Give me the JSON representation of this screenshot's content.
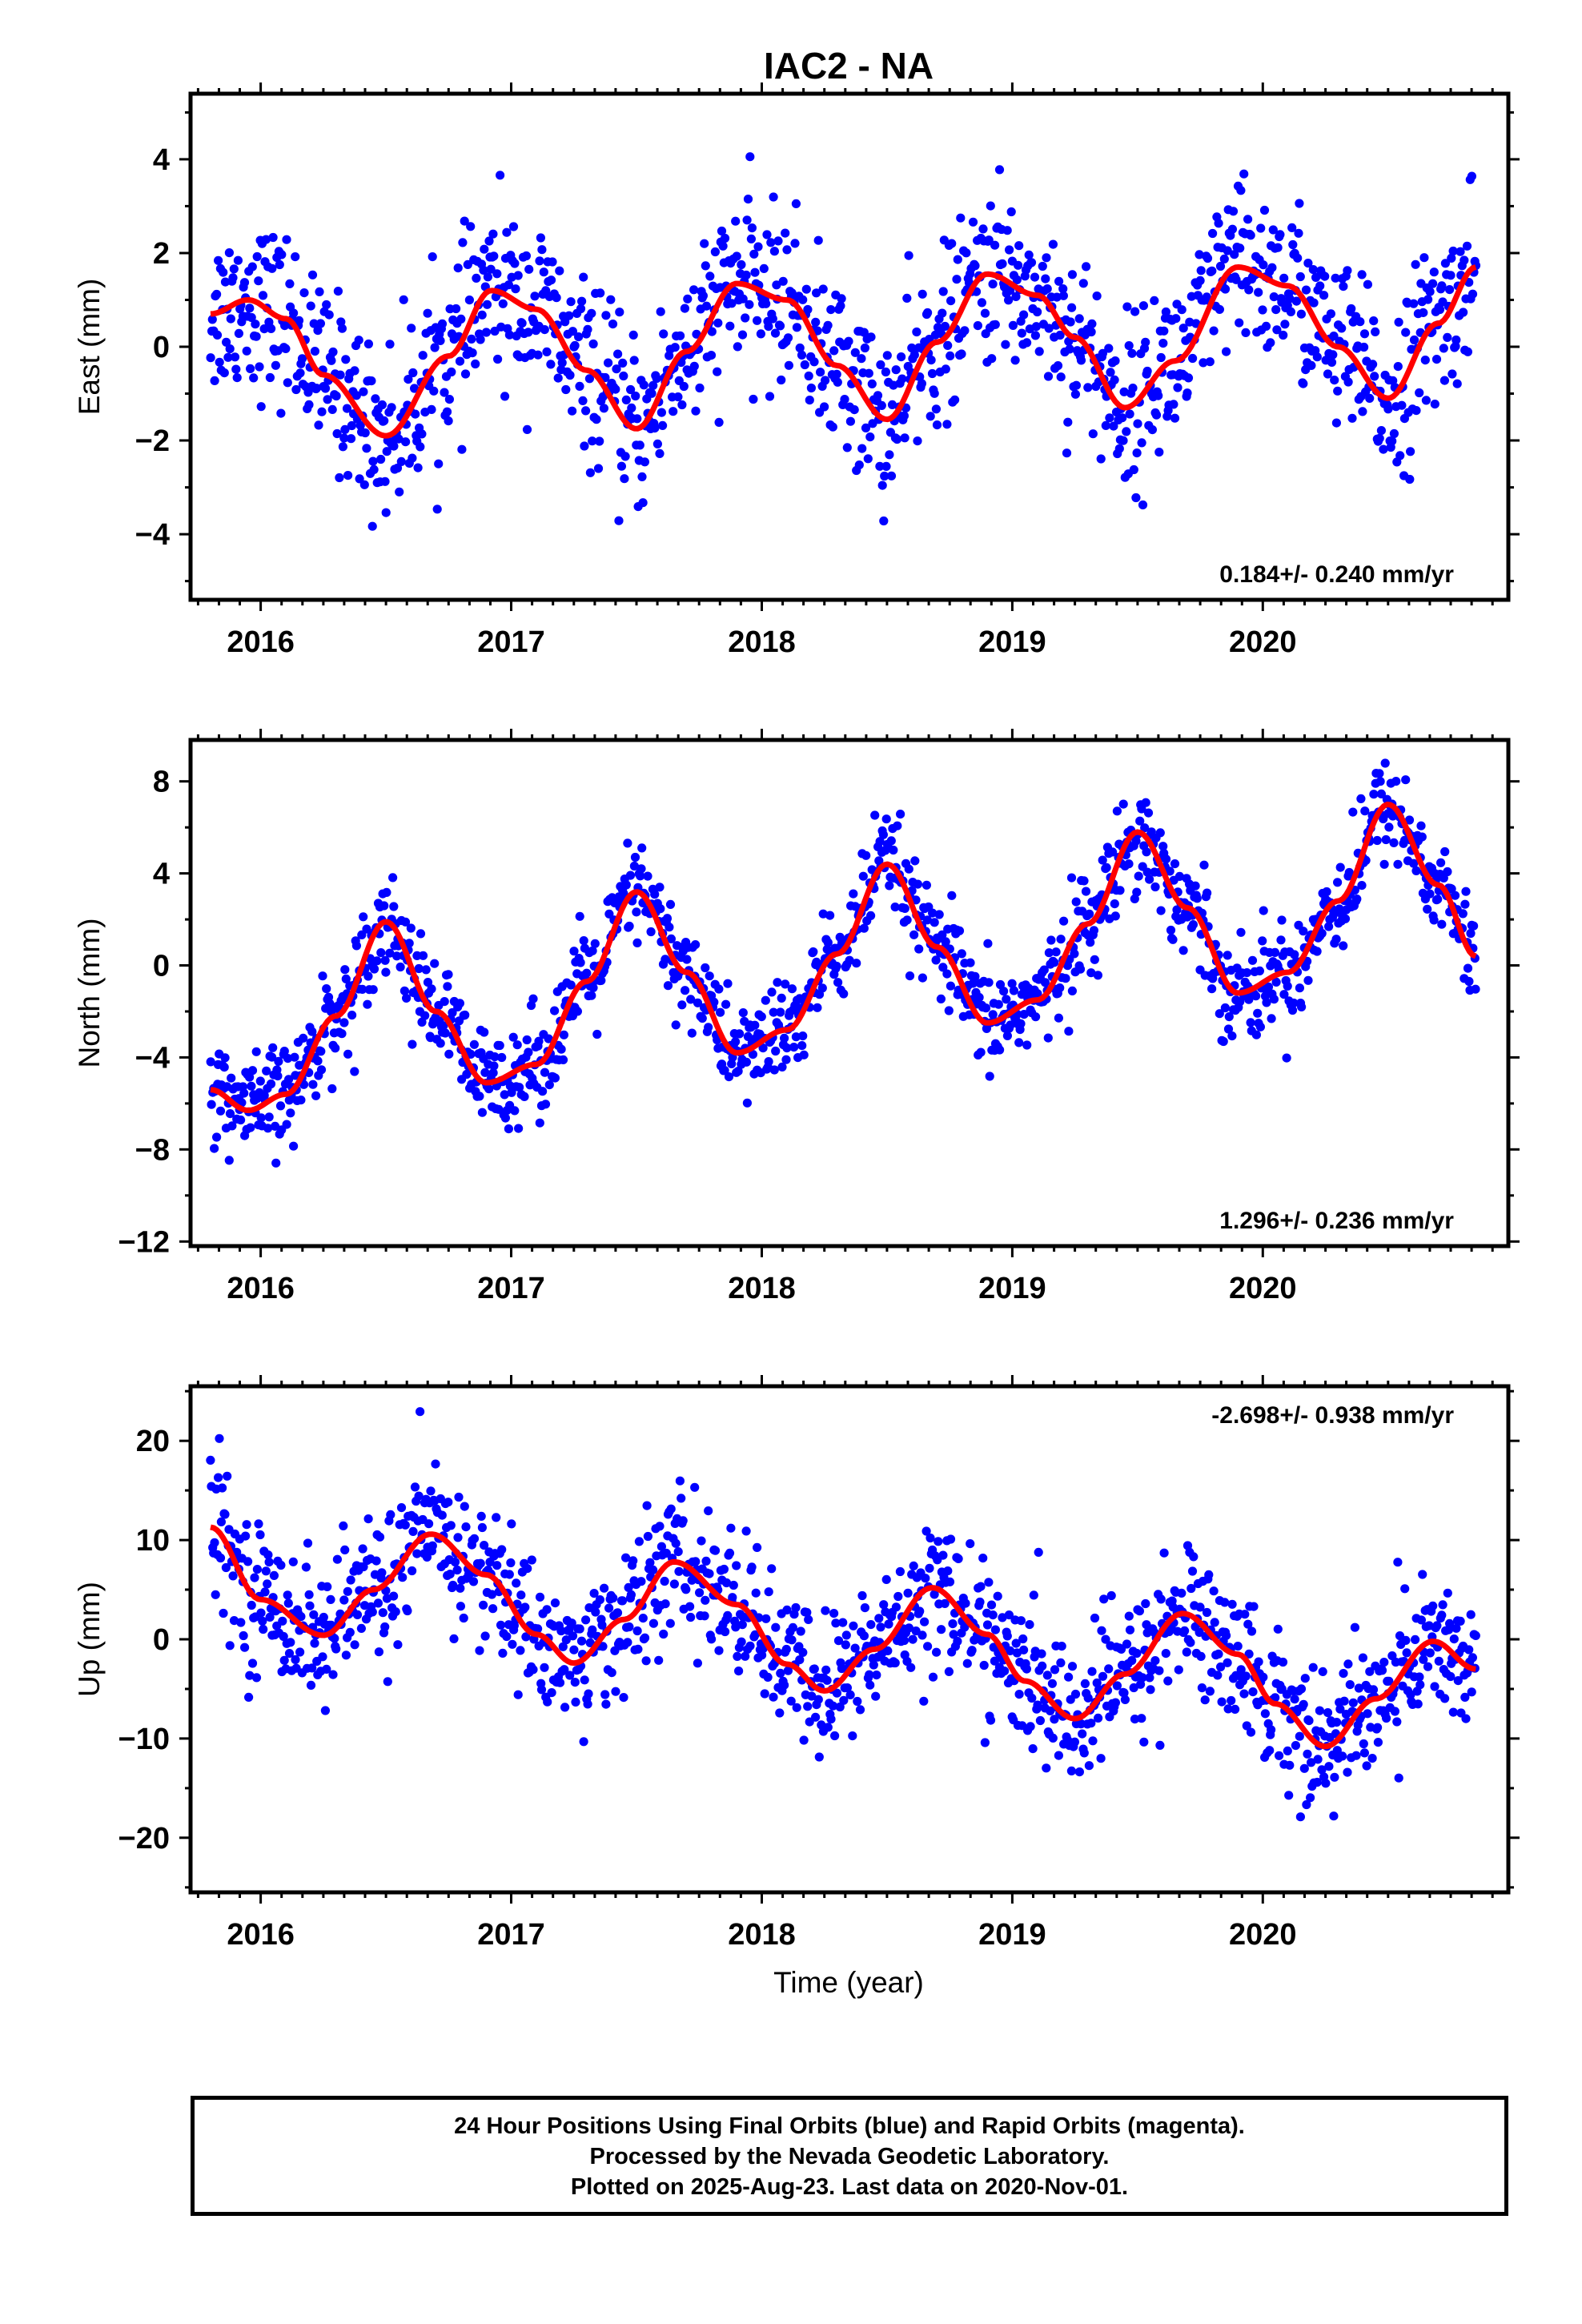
{
  "title": "IAC2 - NA",
  "xlabel": "Time (year)",
  "footer": {
    "line1": "24 Hour Positions Using Final Orbits (blue) and Rapid Orbits (magenta).",
    "line2": "Processed by the Nevada Geodetic Laboratory.",
    "line3": "Plotted on 2025-Aug-23. Last data on 2020-Nov-01."
  },
  "colors": {
    "points": "#0000ff",
    "fit": "#ff0000",
    "axes": "#000000"
  },
  "chart_data": [
    {
      "type": "scatter",
      "name": "east",
      "ylabel": "East (mm)",
      "xlim": [
        2015.72,
        2020.98
      ],
      "ylim": [
        -5.4,
        5.4
      ],
      "yticks": [
        -4,
        -2,
        0,
        2,
        4
      ],
      "xticks": [
        2016,
        2017,
        2018,
        2019,
        2020
      ],
      "rate_text": "0.184+/- 0.240 mm/yr",
      "rate_position": "bottom-right",
      "fit": {
        "x": [
          2015.8,
          2015.95,
          2016.1,
          2016.25,
          2016.5,
          2016.75,
          2016.92,
          2017.1,
          2017.3,
          2017.5,
          2017.7,
          2017.9,
          2018.1,
          2018.3,
          2018.5,
          2018.7,
          2018.9,
          2019.1,
          2019.25,
          2019.45,
          2019.65,
          2019.9,
          2020.1,
          2020.3,
          2020.5,
          2020.7,
          2020.85
        ],
        "y": [
          0.7,
          1.0,
          0.6,
          -0.6,
          -1.9,
          -0.2,
          1.2,
          0.8,
          -0.5,
          -1.75,
          -0.1,
          1.35,
          1.0,
          -0.4,
          -1.55,
          0.1,
          1.55,
          1.1,
          0.2,
          -1.3,
          -0.3,
          1.7,
          1.3,
          0.0,
          -1.1,
          0.5,
          1.7
        ]
      },
      "scatter_spread": 0.9,
      "points_n": 1300
    },
    {
      "type": "scatter",
      "name": "north",
      "ylabel": "North (mm)",
      "xlim": [
        2015.72,
        2020.98
      ],
      "ylim": [
        -12.2,
        9.8
      ],
      "yticks": [
        -12,
        -8,
        -4,
        0,
        4,
        8
      ],
      "xticks": [
        2016,
        2017,
        2018,
        2019,
        2020
      ],
      "rate_text": "1.296+/- 0.236 mm/yr",
      "rate_position": "bottom-right",
      "fit": {
        "x": [
          2015.8,
          2015.95,
          2016.1,
          2016.3,
          2016.5,
          2016.7,
          2016.9,
          2017.1,
          2017.3,
          2017.5,
          2017.7,
          2017.9,
          2018.1,
          2018.3,
          2018.5,
          2018.7,
          2018.9,
          2019.1,
          2019.3,
          2019.5,
          2019.7,
          2019.9,
          2020.1,
          2020.3,
          2020.5,
          2020.7,
          2020.85
        ],
        "y": [
          -5.4,
          -6.3,
          -5.6,
          -2.2,
          1.9,
          -2.0,
          -5.1,
          -4.3,
          -0.7,
          3.2,
          -0.3,
          -3.8,
          -2.8,
          0.5,
          4.4,
          0.8,
          -2.5,
          -1.5,
          1.8,
          5.8,
          2.5,
          -1.2,
          -0.3,
          2.8,
          7.0,
          3.5,
          0.4
        ]
      },
      "scatter_spread": 1.1,
      "points_n": 1300
    },
    {
      "type": "scatter",
      "name": "up",
      "ylabel": "Up (mm)",
      "xlim": [
        2015.72,
        2020.98
      ],
      "ylim": [
        -25.5,
        25.5
      ],
      "yticks": [
        -20,
        -10,
        0,
        10,
        20
      ],
      "xticks": [
        2016,
        2017,
        2018,
        2019,
        2020
      ],
      "rate_text": "-2.698+/- 0.938 mm/yr",
      "rate_position": "top-right",
      "fit": {
        "x": [
          2015.8,
          2016.0,
          2016.25,
          2016.45,
          2016.68,
          2016.9,
          2017.1,
          2017.25,
          2017.45,
          2017.65,
          2017.9,
          2018.1,
          2018.25,
          2018.45,
          2018.68,
          2018.9,
          2019.05,
          2019.25,
          2019.45,
          2019.68,
          2019.9,
          2020.05,
          2020.25,
          2020.45,
          2020.68,
          2020.85
        ],
        "y": [
          11.3,
          4.0,
          0.4,
          5.0,
          10.6,
          6.5,
          0.5,
          -2.4,
          2.0,
          7.8,
          3.5,
          -2.5,
          -5.2,
          -1.0,
          5.2,
          0.5,
          -4.2,
          -8.0,
          -3.5,
          2.6,
          -1.5,
          -6.5,
          -10.8,
          -6.0,
          -0.2,
          -3.0
        ]
      },
      "scatter_spread": 3.6,
      "points_n": 1300
    }
  ]
}
